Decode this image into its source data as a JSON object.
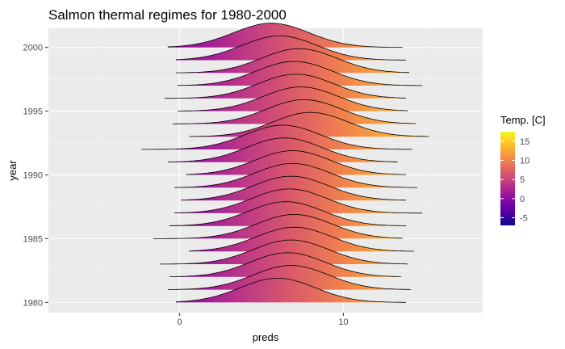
{
  "chart_data": {
    "type": "ridgeline",
    "title": "Salmon thermal regimes for 1980-2000",
    "xlabel": "preds",
    "ylabel": "year",
    "xlim": [
      -8,
      18.5
    ],
    "ylim": [
      1979.2,
      2001.5
    ],
    "x_ticks": [
      0,
      10
    ],
    "y_ticks": [
      1980,
      1985,
      1990,
      1995,
      2000
    ],
    "grid": true,
    "legend": {
      "title": "Temp. [C]",
      "ticks": [
        -5,
        0,
        5,
        10,
        15
      ],
      "range": [
        -7,
        17.5
      ],
      "colormap": "plasma",
      "position": "right"
    },
    "series": [
      {
        "year": 1980,
        "min": -0.2,
        "max": 13.8,
        "peak": 6.0
      },
      {
        "year": 1981,
        "min": -0.7,
        "max": 14.1,
        "peak": 6.8
      },
      {
        "year": 1982,
        "min": -0.6,
        "max": 13.5,
        "peak": 6.6
      },
      {
        "year": 1983,
        "min": -1.2,
        "max": 13.9,
        "peak": 6.8
      },
      {
        "year": 1984,
        "min": 0.6,
        "max": 14.3,
        "peak": 7.0
      },
      {
        "year": 1985,
        "min": -1.6,
        "max": 13.6,
        "peak": 7.0
      },
      {
        "year": 1986,
        "min": -0.6,
        "max": 13.8,
        "peak": 6.5
      },
      {
        "year": 1987,
        "min": -0.3,
        "max": 14.8,
        "peak": 6.7
      },
      {
        "year": 1988,
        "min": 0.1,
        "max": 13.8,
        "peak": 6.8
      },
      {
        "year": 1989,
        "min": -0.3,
        "max": 14.5,
        "peak": 6.9
      },
      {
        "year": 1990,
        "min": 0.4,
        "max": 13.8,
        "peak": 6.9
      },
      {
        "year": 1991,
        "min": -0.7,
        "max": 13.3,
        "peak": 6.4
      },
      {
        "year": 1992,
        "min": -2.3,
        "max": 14.2,
        "peak": 6.3
      },
      {
        "year": 1993,
        "min": 0.6,
        "max": 15.2,
        "peak": 8.0
      },
      {
        "year": 1994,
        "min": -0.4,
        "max": 14.4,
        "peak": 7.6
      },
      {
        "year": 1995,
        "min": -0.1,
        "max": 13.9,
        "peak": 7.4
      },
      {
        "year": 1996,
        "min": -0.9,
        "max": 13.8,
        "peak": 7.1
      },
      {
        "year": 1997,
        "min": -0.1,
        "max": 14.8,
        "peak": 7.0
      },
      {
        "year": 1998,
        "min": -0.2,
        "max": 14.0,
        "peak": 7.3
      },
      {
        "year": 1999,
        "min": -0.2,
        "max": 13.8,
        "peak": 6.1
      },
      {
        "year": 2000,
        "min": -0.7,
        "max": 13.6,
        "peak": 5.6
      }
    ]
  }
}
